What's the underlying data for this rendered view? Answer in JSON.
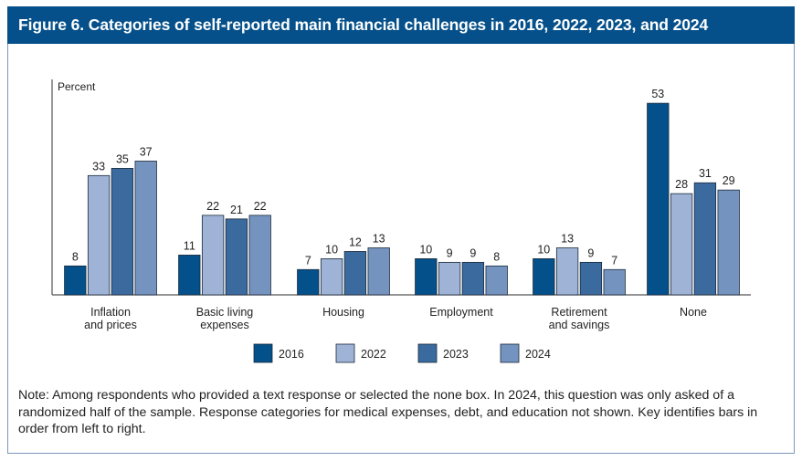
{
  "title": "Figure 6. Categories of self-reported main financial challenges in 2016, 2022, 2023, and 2024",
  "note": "Note: Among respondents who provided a text response or selected the none box. In 2024, this question was only asked of a randomized half of the sample. Response categories for medical expenses, debt, and education not shown. Key identifies bars in order from left to right.",
  "chart_data": {
    "type": "bar",
    "title": "Figure 6. Categories of self-reported main financial challenges in 2016, 2022, 2023, and 2024",
    "ylabel": "Percent",
    "xlabel": "",
    "ylim": [
      0,
      60
    ],
    "grid": false,
    "legend_position": "bottom",
    "categories": [
      [
        "Inflation",
        "and prices"
      ],
      [
        "Basic living",
        "expenses"
      ],
      [
        "Housing"
      ],
      [
        "Employment"
      ],
      [
        "Retirement",
        "and savings"
      ],
      [
        "None"
      ]
    ],
    "series": [
      {
        "name": "2016",
        "color": "#04508a",
        "values": [
          8,
          11,
          7,
          10,
          10,
          53
        ]
      },
      {
        "name": "2022",
        "color": "#9fb3d6",
        "values": [
          33,
          22,
          10,
          9,
          13,
          28
        ]
      },
      {
        "name": "2023",
        "color": "#3b6a9f",
        "values": [
          35,
          21,
          12,
          9,
          9,
          31
        ]
      },
      {
        "name": "2024",
        "color": "#7593bf",
        "values": [
          37,
          22,
          13,
          8,
          7,
          29
        ]
      }
    ]
  }
}
